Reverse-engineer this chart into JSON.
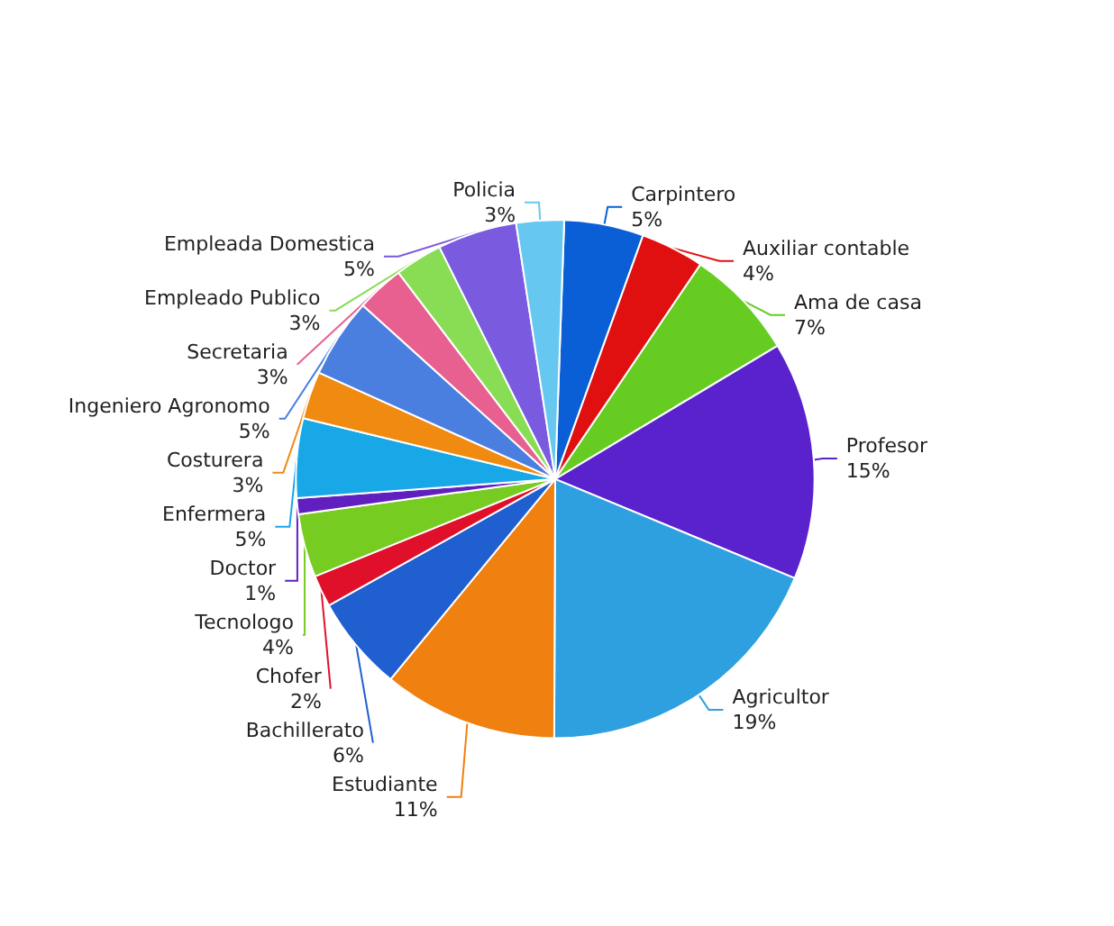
{
  "chart_data": {
    "type": "pie",
    "categories": [
      "Carpintero",
      "Auxiliar contable",
      "Ama de casa",
      "Profesor",
      "Agricultor",
      "Estudiante",
      "Bachillerato",
      "Chofer",
      "Tecnologo",
      "Doctor",
      "Enfermera",
      "Costurera",
      "Ingeniero Agronomo",
      "Secretaria",
      "Empleado Publico",
      "Empleada Domestica",
      "Policia"
    ],
    "values": [
      5,
      4,
      7,
      15,
      19,
      11,
      6,
      2,
      4,
      1,
      5,
      3,
      5,
      3,
      3,
      5,
      3
    ],
    "colors": [
      "#0b5fd6",
      "#e01010",
      "#66cc22",
      "#5a22cc",
      "#2ea0e0",
      "#f08010",
      "#1f5fd0",
      "#e0102a",
      "#77cc22",
      "#6020c0",
      "#18a8e8",
      "#f08a10",
      "#4a7fe0",
      "#e86090",
      "#88dd55",
      "#7a5adf",
      "#66c8f0"
    ],
    "value_labels": [
      "5%",
      "4%",
      "7%",
      "15%",
      "19%",
      "11%",
      "6%",
      "2%",
      "4%",
      "1%",
      "5%",
      "3%",
      "5%",
      "3%",
      "3%",
      "5%",
      "3%"
    ],
    "legend": false
  }
}
